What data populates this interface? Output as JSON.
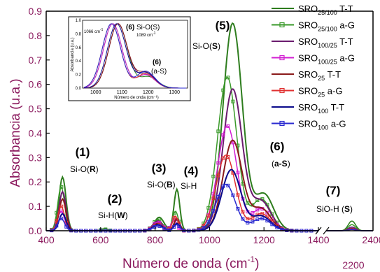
{
  "chart_data": {
    "type": "line",
    "xlabel": "Número de onda (cm",
    "xlabel_sup": "-1",
    "xlabel_suffix": ")",
    "ylabel": "Absorbancia (u.a.)",
    "xlim": [
      400,
      1400
    ],
    "ylim": [
      0,
      0.9
    ],
    "x_ticks": [
      "400",
      "600",
      "800",
      "1000",
      "1200",
      "1400"
    ],
    "y_ticks": [
      "0.0",
      "0.1",
      "0.2",
      "0.3",
      "0.4",
      "0.5",
      "0.6",
      "0.7",
      "0.8",
      "0.9"
    ],
    "break_xlim": [
      2200,
      2400
    ],
    "break_ticks": [
      "2200",
      "2400"
    ],
    "series": [
      {
        "name_main": "SRO",
        "name_sub": "25/100",
        "name_tail": " T-T",
        "color": "#2e7d1e",
        "marker": "none",
        "peaks": [
          [
            460,
            0.22,
            18
          ],
          [
            615,
            0.008,
            18
          ],
          [
            815,
            0.055,
            25
          ],
          [
            880,
            0.17,
            15
          ],
          [
            1085,
            0.85,
            50
          ],
          [
            1200,
            0.15,
            50
          ],
          [
            2310,
            0.04,
            22
          ]
        ]
      },
      {
        "name_main": "SRO",
        "name_sub": "25/100",
        "name_tail": " a-G",
        "color": "#3a9a2a",
        "marker": "square",
        "peaks": [
          [
            455,
            0.18,
            18
          ],
          [
            615,
            0.006,
            18
          ],
          [
            810,
            0.045,
            25
          ],
          [
            875,
            0.08,
            15
          ],
          [
            1065,
            0.63,
            50
          ],
          [
            1190,
            0.13,
            50
          ],
          [
            2310,
            0.025,
            22
          ]
        ]
      },
      {
        "name_main": "SRO",
        "name_sub": "100/25",
        "name_tail": " T-T",
        "color": "#6a1b6e",
        "marker": "none",
        "peaks": [
          [
            460,
            0.16,
            18
          ],
          [
            810,
            0.04,
            25
          ],
          [
            880,
            0.045,
            15
          ],
          [
            1085,
            0.58,
            50
          ],
          [
            1190,
            0.12,
            50
          ],
          [
            2310,
            0.015,
            22
          ]
        ]
      },
      {
        "name_main": "SRO",
        "name_sub": "100/25",
        "name_tail": " a-G",
        "color": "#d21fd2",
        "marker": "square",
        "peaks": [
          [
            455,
            0.08,
            18
          ],
          [
            810,
            0.035,
            25
          ],
          [
            870,
            0.045,
            15
          ],
          [
            1065,
            0.43,
            50
          ],
          [
            1190,
            0.09,
            50
          ],
          [
            2310,
            0.01,
            22
          ]
        ]
      },
      {
        "name_main": "SRO",
        "name_sub": "25",
        "name_tail": " T-T",
        "color": "#8a1a1a",
        "marker": "none",
        "peaks": [
          [
            460,
            0.13,
            18
          ],
          [
            810,
            0.03,
            25
          ],
          [
            880,
            0.05,
            15
          ],
          [
            1085,
            0.37,
            50
          ],
          [
            1190,
            0.09,
            50
          ],
          [
            2310,
            0.01,
            22
          ]
        ]
      },
      {
        "name_main": "SRO",
        "name_sub": "25",
        "name_tail": " a-G",
        "color": "#e03030",
        "marker": "square",
        "peaks": [
          [
            455,
            0.1,
            18
          ],
          [
            810,
            0.025,
            25
          ],
          [
            875,
            0.06,
            15
          ],
          [
            1060,
            0.31,
            50
          ],
          [
            1190,
            0.07,
            50
          ],
          [
            2310,
            0.008,
            22
          ]
        ]
      },
      {
        "name_main": "SRO",
        "name_sub": "100",
        "name_tail": " T-T",
        "color": "#0a0a8a",
        "marker": "none",
        "peaks": [
          [
            460,
            0.07,
            18
          ],
          [
            810,
            0.025,
            25
          ],
          [
            880,
            0.03,
            15
          ],
          [
            1080,
            0.25,
            50
          ],
          [
            1190,
            0.06,
            50
          ],
          [
            2310,
            0.006,
            22
          ]
        ]
      },
      {
        "name_main": "SRO",
        "name_sub": "100",
        "name_tail": " a-G",
        "color": "#2a2ad0",
        "marker": "square",
        "peaks": [
          [
            455,
            0.05,
            18
          ],
          [
            810,
            0.02,
            25
          ],
          [
            880,
            0.025,
            15
          ],
          [
            1060,
            0.19,
            50
          ],
          [
            1190,
            0.05,
            50
          ],
          [
            2310,
            0.005,
            22
          ]
        ]
      }
    ],
    "annotations": [
      {
        "num": "(1)",
        "l1_pre": "Si-O(",
        "l1_bold": "R",
        "l1_post": ")"
      },
      {
        "num": "(2)",
        "l1_pre": "Si-H(",
        "l1_bold": "W",
        "l1_post": ")"
      },
      {
        "num": "(3)",
        "l1_pre": "Si-O(",
        "l1_bold": "B",
        "l1_post": ")"
      },
      {
        "num": "(4)",
        "l1_pre": "Si-H",
        "l1_bold": "",
        "l1_post": ""
      },
      {
        "num": "(5)",
        "l1_pre": "Si-O(",
        "l1_bold": "S",
        "l1_post": ")"
      },
      {
        "num": "(6)",
        "l1_pre": "(",
        "l1_bold": "a-S",
        "l1_post": ")"
      },
      {
        "num": "(7)",
        "l1_pre": "SiO-H (",
        "l1_bold": "S",
        "l1_post": ")"
      }
    ],
    "inset": {
      "xlabel": "Número de onda (cm⁻¹)",
      "ylabel": "Absorbancia (u.a.)",
      "xlim": [
        950,
        1350
      ],
      "ylim": [
        0,
        1.0
      ],
      "x_ticks": [
        "1000",
        "1100",
        "1200",
        "1300"
      ],
      "y_ticks": [
        "0.0",
        "0.2",
        "0.4",
        "0.6",
        "0.8",
        "1.0"
      ],
      "label_1066": "1066 cm",
      "label_1066_sup": "-1",
      "label_1089": "1089 cm",
      "label_1089_sup": "-1",
      "ann_6_num": "(6)",
      "ann_6_text": "Si-O(S)",
      "ann_6b_num": "(6)",
      "ann_6b_text": "(a-S)"
    }
  }
}
